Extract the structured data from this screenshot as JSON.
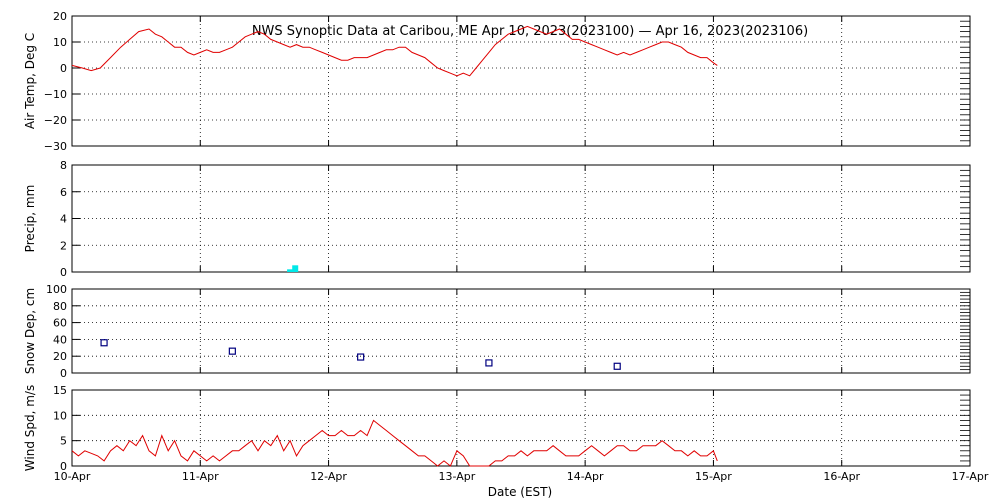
{
  "chart_data": {
    "title": "NWS Synoptic Data at Caribou, ME   Apr 10, 2023(2023100) — Apr 16, 2023(2023106)",
    "xlabel": "Date (EST)",
    "x_ticks": [
      "10-Apr",
      "11-Apr",
      "12-Apr",
      "13-Apr",
      "14-Apr",
      "15-Apr",
      "16-Apr",
      "17-Apr"
    ],
    "xlim_days": [
      0,
      7
    ],
    "grid": true,
    "line_color": "#e00000",
    "panels": [
      {
        "type": "line",
        "ylabel": "Air Temp, Deg C",
        "ylim": [
          -30,
          20
        ],
        "y_ticks": [
          "−30",
          "−20",
          "−10",
          "0",
          "10",
          "20"
        ],
        "y_tick_values": [
          -30,
          -20,
          -10,
          0,
          10,
          20
        ],
        "series": [
          {
            "color": "#e00000",
            "x": [
              0,
              0.08,
              0.15,
              0.22,
              0.3,
              0.38,
              0.45,
              0.52,
              0.6,
              0.65,
              0.7,
              0.75,
              0.8,
              0.85,
              0.9,
              0.95,
              1.0,
              1.05,
              1.1,
              1.15,
              1.2,
              1.25,
              1.3,
              1.35,
              1.4,
              1.45,
              1.5,
              1.55,
              1.6,
              1.65,
              1.7,
              1.75,
              1.8,
              1.85,
              1.9,
              1.95,
              2.0,
              2.05,
              2.1,
              2.15,
              2.2,
              2.25,
              2.3,
              2.35,
              2.4,
              2.45,
              2.5,
              2.55,
              2.6,
              2.65,
              2.7,
              2.75,
              2.8,
              2.85,
              2.9,
              2.95,
              3.0,
              3.05,
              3.1,
              3.15,
              3.2,
              3.25,
              3.3,
              3.35,
              3.4,
              3.45,
              3.5,
              3.55,
              3.6,
              3.65,
              3.7,
              3.75,
              3.8,
              3.85,
              3.9,
              3.95,
              4.0,
              4.05,
              4.1,
              4.15,
              4.2,
              4.25,
              4.3,
              4.35,
              4.4,
              4.45,
              4.5,
              4.55,
              4.6,
              4.65,
              4.7,
              4.75,
              4.8,
              4.85,
              4.9,
              4.95,
              5.0,
              5.03
            ],
            "y": [
              1,
              0,
              -1,
              0,
              4,
              8,
              11,
              14,
              15,
              13,
              12,
              10,
              8,
              8,
              6,
              5,
              6,
              7,
              6,
              6,
              7,
              8,
              10,
              12,
              13,
              14,
              13,
              11,
              10,
              9,
              8,
              9,
              8,
              8,
              7,
              6,
              5,
              4,
              3,
              3,
              4,
              4,
              4,
              5,
              6,
              7,
              7,
              8,
              8,
              6,
              5,
              4,
              2,
              0,
              -1,
              -2,
              -3,
              -2,
              -3,
              0,
              3,
              6,
              9,
              11,
              13,
              14,
              15,
              16,
              15,
              14,
              13,
              14,
              15,
              13,
              11,
              11,
              10,
              9,
              8,
              7,
              6,
              5,
              6,
              5,
              6,
              7,
              8,
              9,
              10,
              10,
              9,
              8,
              6,
              5,
              4,
              4,
              2,
              1
            ]
          }
        ]
      },
      {
        "type": "bar",
        "ylabel": "Precip, mm",
        "ylim": [
          0,
          8
        ],
        "y_ticks": [
          "0",
          "2",
          "4",
          "6",
          "8"
        ],
        "y_tick_values": [
          0,
          2,
          4,
          6,
          8
        ],
        "series": [
          {
            "color": "#00e8e8",
            "x": [
              1.7,
              1.74
            ],
            "values": [
              0.2,
              0.5
            ]
          }
        ]
      },
      {
        "type": "scatter",
        "ylabel": "Snow Dep, cm",
        "ylim": [
          0,
          100
        ],
        "y_ticks": [
          "0",
          "20",
          "40",
          "60",
          "80",
          "100"
        ],
        "y_tick_values": [
          0,
          20,
          40,
          60,
          80,
          100
        ],
        "series": [
          {
            "color": "#000080",
            "x": [
              0.25,
              1.25,
              2.25,
              3.25,
              4.25
            ],
            "y": [
              36,
              26,
              19,
              12,
              8
            ]
          }
        ]
      },
      {
        "type": "line",
        "ylabel": "Wind Spd, m/s",
        "ylim": [
          0,
          15
        ],
        "y_ticks": [
          "0",
          "5",
          "10",
          "15"
        ],
        "y_tick_values": [
          0,
          5,
          10,
          15
        ],
        "series": [
          {
            "color": "#e00000",
            "x": [
              0,
              0.05,
              0.1,
              0.15,
              0.2,
              0.25,
              0.3,
              0.35,
              0.4,
              0.45,
              0.5,
              0.55,
              0.6,
              0.65,
              0.7,
              0.75,
              0.8,
              0.85,
              0.9,
              0.95,
              1.0,
              1.05,
              1.1,
              1.15,
              1.2,
              1.25,
              1.3,
              1.35,
              1.4,
              1.45,
              1.5,
              1.55,
              1.6,
              1.65,
              1.7,
              1.75,
              1.8,
              1.85,
              1.9,
              1.95,
              2.0,
              2.05,
              2.1,
              2.15,
              2.2,
              2.25,
              2.3,
              2.35,
              2.4,
              2.45,
              2.5,
              2.55,
              2.6,
              2.65,
              2.7,
              2.75,
              2.8,
              2.85,
              2.9,
              2.95,
              3.0,
              3.05,
              3.1,
              3.15,
              3.2,
              3.25,
              3.3,
              3.35,
              3.4,
              3.45,
              3.5,
              3.55,
              3.6,
              3.65,
              3.7,
              3.75,
              3.8,
              3.85,
              3.9,
              3.95,
              4.0,
              4.05,
              4.1,
              4.15,
              4.2,
              4.25,
              4.3,
              4.35,
              4.4,
              4.45,
              4.5,
              4.55,
              4.6,
              4.65,
              4.7,
              4.75,
              4.8,
              4.85,
              4.9,
              4.95,
              5.0,
              5.03
            ],
            "y": [
              3,
              2,
              3,
              2.5,
              2,
              1,
              3,
              4,
              3,
              5,
              4,
              6,
              3,
              2,
              6,
              3,
              5,
              2,
              1,
              3,
              2,
              1,
              2,
              1,
              2,
              3,
              3,
              4,
              5,
              3,
              5,
              4,
              6,
              3,
              5,
              2,
              4,
              5,
              6,
              7,
              6,
              6,
              7,
              6,
              6,
              7,
              6,
              9,
              8,
              7,
              6,
              5,
              4,
              3,
              2,
              2,
              1,
              0,
              1,
              0,
              3,
              2,
              0,
              0,
              0,
              0,
              1,
              1,
              2,
              2,
              3,
              2,
              3,
              3,
              3,
              4,
              3,
              2,
              2,
              2,
              3,
              4,
              3,
              2,
              3,
              4,
              4,
              3,
              3,
              4,
              4,
              4,
              5,
              4,
              3,
              3,
              2,
              3,
              2,
              2,
              3,
              1
            ]
          }
        ]
      }
    ]
  }
}
